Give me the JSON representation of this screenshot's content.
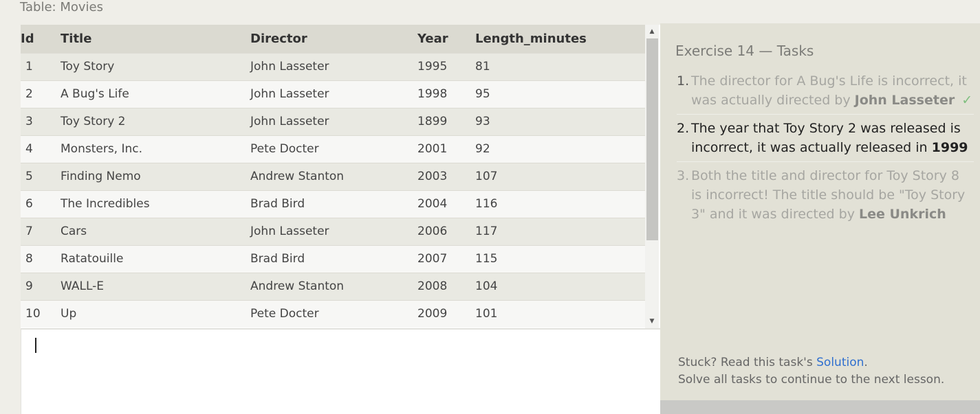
{
  "table_label": "Table: Movies",
  "table": {
    "headers": [
      "Id",
      "Title",
      "Director",
      "Year",
      "Length_minutes"
    ],
    "rows": [
      [
        "1",
        "Toy Story",
        "John Lasseter",
        "1995",
        "81"
      ],
      [
        "2",
        "A Bug's Life",
        "John Lasseter",
        "1998",
        "95"
      ],
      [
        "3",
        "Toy Story 2",
        "John Lasseter",
        "1899",
        "93"
      ],
      [
        "4",
        "Monsters, Inc.",
        "Pete Docter",
        "2001",
        "92"
      ],
      [
        "5",
        "Finding Nemo",
        "Andrew Stanton",
        "2003",
        "107"
      ],
      [
        "6",
        "The Incredibles",
        "Brad Bird",
        "2004",
        "116"
      ],
      [
        "7",
        "Cars",
        "John Lasseter",
        "2006",
        "117"
      ],
      [
        "8",
        "Ratatouille",
        "Brad Bird",
        "2007",
        "115"
      ],
      [
        "9",
        "WALL-E",
        "Andrew Stanton",
        "2008",
        "104"
      ],
      [
        "10",
        "Up",
        "Pete Docter",
        "2009",
        "101"
      ]
    ]
  },
  "scrollbar": {
    "up_icon": "▲",
    "down_icon": "▼"
  },
  "tasks": {
    "title": "Exercise 14 — Tasks",
    "items": [
      {
        "num": "1.",
        "text": "The director for A Bug's Life is incorrect, it was actually directed by ",
        "bold": "John Lasseter",
        "after": "",
        "check": "✓",
        "state": "done"
      },
      {
        "num": "2.",
        "text": "The year that Toy Story 2 was released is incorrect, it was actually released in ",
        "bold": "1999",
        "after": "",
        "check": "",
        "state": "active"
      },
      {
        "num": "3.",
        "text": "Both the title and director for Toy Story 8 is incorrect! The title should be \"Toy Story 3\" and it was directed by ",
        "bold": "Lee Unkrich",
        "after": "",
        "check": "",
        "state": "pending"
      }
    ],
    "stuck_prefix": "Stuck? Read this task's ",
    "solution_link": "Solution",
    "stuck_suffix": ".",
    "continue_text": "Solve all tasks to continue to the next lesson."
  },
  "colors": {
    "background": "#efeee8",
    "header_row": "#dbdad1",
    "odd_row": "#e9e9e2",
    "even_row": "#f7f7f5",
    "tasks_panel": "#e2e1d6",
    "link": "#2f6fcf",
    "check": "#7fbf7f"
  }
}
